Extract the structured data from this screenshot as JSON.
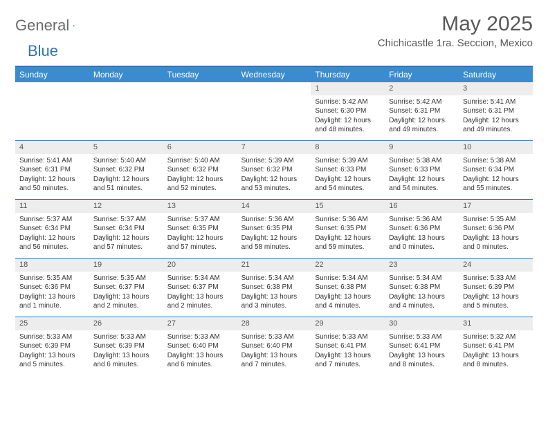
{
  "brand": {
    "word1": "General",
    "word2": "Blue"
  },
  "header": {
    "title": "May 2025",
    "location": "Chichicastle 1ra. Seccion, Mexico"
  },
  "colors": {
    "header_bar": "#3a8bd0",
    "rule": "#2e75b6",
    "daynum_bg": "#ededed",
    "text": "#333333",
    "title_text": "#595959"
  },
  "days_of_week": [
    "Sunday",
    "Monday",
    "Tuesday",
    "Wednesday",
    "Thursday",
    "Friday",
    "Saturday"
  ],
  "weeks": [
    [
      {
        "n": "",
        "sr": "",
        "ss": "",
        "dl": ""
      },
      {
        "n": "",
        "sr": "",
        "ss": "",
        "dl": ""
      },
      {
        "n": "",
        "sr": "",
        "ss": "",
        "dl": ""
      },
      {
        "n": "",
        "sr": "",
        "ss": "",
        "dl": ""
      },
      {
        "n": "1",
        "sr": "Sunrise: 5:42 AM",
        "ss": "Sunset: 6:30 PM",
        "dl": "Daylight: 12 hours and 48 minutes."
      },
      {
        "n": "2",
        "sr": "Sunrise: 5:42 AM",
        "ss": "Sunset: 6:31 PM",
        "dl": "Daylight: 12 hours and 49 minutes."
      },
      {
        "n": "3",
        "sr": "Sunrise: 5:41 AM",
        "ss": "Sunset: 6:31 PM",
        "dl": "Daylight: 12 hours and 49 minutes."
      }
    ],
    [
      {
        "n": "4",
        "sr": "Sunrise: 5:41 AM",
        "ss": "Sunset: 6:31 PM",
        "dl": "Daylight: 12 hours and 50 minutes."
      },
      {
        "n": "5",
        "sr": "Sunrise: 5:40 AM",
        "ss": "Sunset: 6:32 PM",
        "dl": "Daylight: 12 hours and 51 minutes."
      },
      {
        "n": "6",
        "sr": "Sunrise: 5:40 AM",
        "ss": "Sunset: 6:32 PM",
        "dl": "Daylight: 12 hours and 52 minutes."
      },
      {
        "n": "7",
        "sr": "Sunrise: 5:39 AM",
        "ss": "Sunset: 6:32 PM",
        "dl": "Daylight: 12 hours and 53 minutes."
      },
      {
        "n": "8",
        "sr": "Sunrise: 5:39 AM",
        "ss": "Sunset: 6:33 PM",
        "dl": "Daylight: 12 hours and 54 minutes."
      },
      {
        "n": "9",
        "sr": "Sunrise: 5:38 AM",
        "ss": "Sunset: 6:33 PM",
        "dl": "Daylight: 12 hours and 54 minutes."
      },
      {
        "n": "10",
        "sr": "Sunrise: 5:38 AM",
        "ss": "Sunset: 6:34 PM",
        "dl": "Daylight: 12 hours and 55 minutes."
      }
    ],
    [
      {
        "n": "11",
        "sr": "Sunrise: 5:37 AM",
        "ss": "Sunset: 6:34 PM",
        "dl": "Daylight: 12 hours and 56 minutes."
      },
      {
        "n": "12",
        "sr": "Sunrise: 5:37 AM",
        "ss": "Sunset: 6:34 PM",
        "dl": "Daylight: 12 hours and 57 minutes."
      },
      {
        "n": "13",
        "sr": "Sunrise: 5:37 AM",
        "ss": "Sunset: 6:35 PM",
        "dl": "Daylight: 12 hours and 57 minutes."
      },
      {
        "n": "14",
        "sr": "Sunrise: 5:36 AM",
        "ss": "Sunset: 6:35 PM",
        "dl": "Daylight: 12 hours and 58 minutes."
      },
      {
        "n": "15",
        "sr": "Sunrise: 5:36 AM",
        "ss": "Sunset: 6:35 PM",
        "dl": "Daylight: 12 hours and 59 minutes."
      },
      {
        "n": "16",
        "sr": "Sunrise: 5:36 AM",
        "ss": "Sunset: 6:36 PM",
        "dl": "Daylight: 13 hours and 0 minutes."
      },
      {
        "n": "17",
        "sr": "Sunrise: 5:35 AM",
        "ss": "Sunset: 6:36 PM",
        "dl": "Daylight: 13 hours and 0 minutes."
      }
    ],
    [
      {
        "n": "18",
        "sr": "Sunrise: 5:35 AM",
        "ss": "Sunset: 6:36 PM",
        "dl": "Daylight: 13 hours and 1 minute."
      },
      {
        "n": "19",
        "sr": "Sunrise: 5:35 AM",
        "ss": "Sunset: 6:37 PM",
        "dl": "Daylight: 13 hours and 2 minutes."
      },
      {
        "n": "20",
        "sr": "Sunrise: 5:34 AM",
        "ss": "Sunset: 6:37 PM",
        "dl": "Daylight: 13 hours and 2 minutes."
      },
      {
        "n": "21",
        "sr": "Sunrise: 5:34 AM",
        "ss": "Sunset: 6:38 PM",
        "dl": "Daylight: 13 hours and 3 minutes."
      },
      {
        "n": "22",
        "sr": "Sunrise: 5:34 AM",
        "ss": "Sunset: 6:38 PM",
        "dl": "Daylight: 13 hours and 4 minutes."
      },
      {
        "n": "23",
        "sr": "Sunrise: 5:34 AM",
        "ss": "Sunset: 6:38 PM",
        "dl": "Daylight: 13 hours and 4 minutes."
      },
      {
        "n": "24",
        "sr": "Sunrise: 5:33 AM",
        "ss": "Sunset: 6:39 PM",
        "dl": "Daylight: 13 hours and 5 minutes."
      }
    ],
    [
      {
        "n": "25",
        "sr": "Sunrise: 5:33 AM",
        "ss": "Sunset: 6:39 PM",
        "dl": "Daylight: 13 hours and 5 minutes."
      },
      {
        "n": "26",
        "sr": "Sunrise: 5:33 AM",
        "ss": "Sunset: 6:39 PM",
        "dl": "Daylight: 13 hours and 6 minutes."
      },
      {
        "n": "27",
        "sr": "Sunrise: 5:33 AM",
        "ss": "Sunset: 6:40 PM",
        "dl": "Daylight: 13 hours and 6 minutes."
      },
      {
        "n": "28",
        "sr": "Sunrise: 5:33 AM",
        "ss": "Sunset: 6:40 PM",
        "dl": "Daylight: 13 hours and 7 minutes."
      },
      {
        "n": "29",
        "sr": "Sunrise: 5:33 AM",
        "ss": "Sunset: 6:41 PM",
        "dl": "Daylight: 13 hours and 7 minutes."
      },
      {
        "n": "30",
        "sr": "Sunrise: 5:33 AM",
        "ss": "Sunset: 6:41 PM",
        "dl": "Daylight: 13 hours and 8 minutes."
      },
      {
        "n": "31",
        "sr": "Sunrise: 5:32 AM",
        "ss": "Sunset: 6:41 PM",
        "dl": "Daylight: 13 hours and 8 minutes."
      }
    ]
  ]
}
